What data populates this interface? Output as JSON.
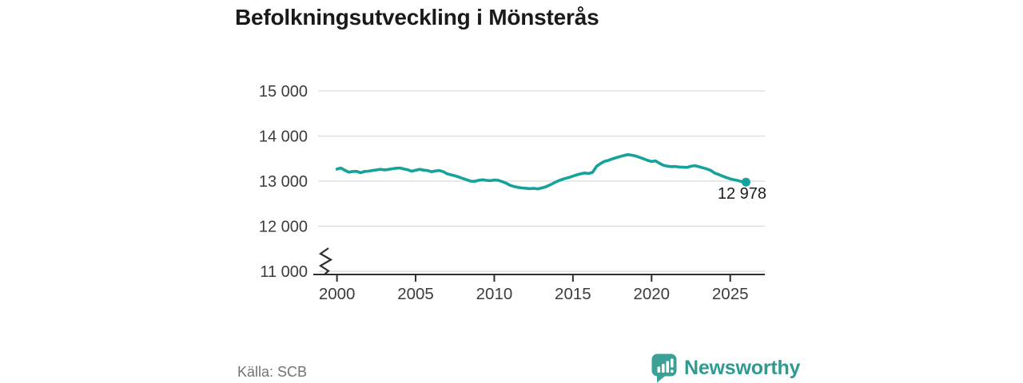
{
  "title": "Befolkningsutveckling i Mönsterås",
  "source": "Källa: SCB",
  "logo": {
    "text": "Newsworthy"
  },
  "colors": {
    "line": "#14a29b",
    "grid": "#d9d9d9",
    "axis": "#2e2e2e",
    "tick_text": "#3c3c3c",
    "end_label": "#1b1b1b",
    "title_text": "#1a1a1a",
    "source_text": "#737373",
    "logo_icon": "#3ba197",
    "logo_text": "#2e9a91"
  },
  "chart_data": {
    "type": "line",
    "title": "Befolkningsutveckling i Mönsterås",
    "xlabel": "",
    "ylabel": "",
    "x_domain": [
      1998.8,
      2027.2
    ],
    "y_domain": [
      11000,
      15000
    ],
    "grid": true,
    "legend": false,
    "axis_break_at_bottom": true,
    "y_ticks": [
      {
        "value": 15000,
        "label": "15 000"
      },
      {
        "value": 14000,
        "label": "14 000"
      },
      {
        "value": 13000,
        "label": "13 000"
      },
      {
        "value": 12000,
        "label": "12 000"
      },
      {
        "value": 11000,
        "label": "11 000"
      }
    ],
    "x_ticks": [
      {
        "value": 2000,
        "label": "2000"
      },
      {
        "value": 2005,
        "label": "2005"
      },
      {
        "value": 2010,
        "label": "2010"
      },
      {
        "value": 2015,
        "label": "2015"
      },
      {
        "value": 2020,
        "label": "2020"
      },
      {
        "value": 2025,
        "label": "2025"
      }
    ],
    "end_label": "12 978",
    "end_point": {
      "x": 2026.0,
      "y": 12978
    },
    "series": [
      {
        "name": "Befolkning i Mönsterås",
        "points": [
          [
            2000.0,
            13268
          ],
          [
            2000.25,
            13290
          ],
          [
            2000.5,
            13240
          ],
          [
            2000.75,
            13198
          ],
          [
            2001.0,
            13215
          ],
          [
            2001.25,
            13218
          ],
          [
            2001.5,
            13185
          ],
          [
            2001.75,
            13215
          ],
          [
            2002.0,
            13222
          ],
          [
            2002.25,
            13235
          ],
          [
            2002.5,
            13248
          ],
          [
            2002.75,
            13262
          ],
          [
            2003.0,
            13250
          ],
          [
            2003.25,
            13258
          ],
          [
            2003.5,
            13275
          ],
          [
            2003.75,
            13285
          ],
          [
            2004.0,
            13292
          ],
          [
            2004.25,
            13270
          ],
          [
            2004.5,
            13252
          ],
          [
            2004.75,
            13220
          ],
          [
            2005.0,
            13240
          ],
          [
            2005.25,
            13262
          ],
          [
            2005.5,
            13245
          ],
          [
            2005.75,
            13235
          ],
          [
            2006.0,
            13208
          ],
          [
            2006.25,
            13225
          ],
          [
            2006.5,
            13235
          ],
          [
            2006.75,
            13210
          ],
          [
            2007.0,
            13162
          ],
          [
            2007.25,
            13140
          ],
          [
            2007.5,
            13118
          ],
          [
            2007.75,
            13090
          ],
          [
            2008.0,
            13058
          ],
          [
            2008.25,
            13030
          ],
          [
            2008.5,
            13000
          ],
          [
            2008.75,
            12995
          ],
          [
            2009.0,
            13018
          ],
          [
            2009.25,
            13030
          ],
          [
            2009.5,
            13018
          ],
          [
            2009.75,
            13010
          ],
          [
            2010.0,
            13025
          ],
          [
            2010.25,
            13018
          ],
          [
            2010.5,
            12990
          ],
          [
            2010.75,
            12955
          ],
          [
            2011.0,
            12908
          ],
          [
            2011.25,
            12882
          ],
          [
            2011.5,
            12862
          ],
          [
            2011.75,
            12850
          ],
          [
            2012.0,
            12843
          ],
          [
            2012.25,
            12833
          ],
          [
            2012.5,
            12840
          ],
          [
            2012.75,
            12828
          ],
          [
            2013.0,
            12848
          ],
          [
            2013.25,
            12870
          ],
          [
            2013.5,
            12908
          ],
          [
            2013.75,
            12952
          ],
          [
            2014.0,
            12996
          ],
          [
            2014.25,
            13030
          ],
          [
            2014.5,
            13058
          ],
          [
            2014.75,
            13082
          ],
          [
            2015.0,
            13112
          ],
          [
            2015.25,
            13140
          ],
          [
            2015.5,
            13162
          ],
          [
            2015.75,
            13180
          ],
          [
            2016.0,
            13168
          ],
          [
            2016.25,
            13196
          ],
          [
            2016.5,
            13328
          ],
          [
            2016.75,
            13390
          ],
          [
            2017.0,
            13438
          ],
          [
            2017.25,
            13460
          ],
          [
            2017.5,
            13494
          ],
          [
            2017.75,
            13520
          ],
          [
            2018.0,
            13546
          ],
          [
            2018.25,
            13570
          ],
          [
            2018.5,
            13588
          ],
          [
            2018.75,
            13576
          ],
          [
            2019.0,
            13556
          ],
          [
            2019.25,
            13526
          ],
          [
            2019.5,
            13494
          ],
          [
            2019.75,
            13460
          ],
          [
            2020.0,
            13436
          ],
          [
            2020.25,
            13450
          ],
          [
            2020.5,
            13396
          ],
          [
            2020.75,
            13352
          ],
          [
            2021.0,
            13332
          ],
          [
            2021.25,
            13320
          ],
          [
            2021.5,
            13326
          ],
          [
            2021.75,
            13314
          ],
          [
            2022.0,
            13308
          ],
          [
            2022.25,
            13305
          ],
          [
            2022.5,
            13330
          ],
          [
            2022.75,
            13344
          ],
          [
            2023.0,
            13320
          ],
          [
            2023.25,
            13298
          ],
          [
            2023.5,
            13270
          ],
          [
            2023.75,
            13240
          ],
          [
            2024.0,
            13180
          ],
          [
            2024.25,
            13148
          ],
          [
            2024.5,
            13112
          ],
          [
            2024.75,
            13080
          ],
          [
            2025.0,
            13050
          ],
          [
            2025.25,
            13030
          ],
          [
            2025.5,
            13010
          ],
          [
            2025.75,
            12990
          ],
          [
            2026.0,
            12978
          ]
        ]
      }
    ]
  }
}
